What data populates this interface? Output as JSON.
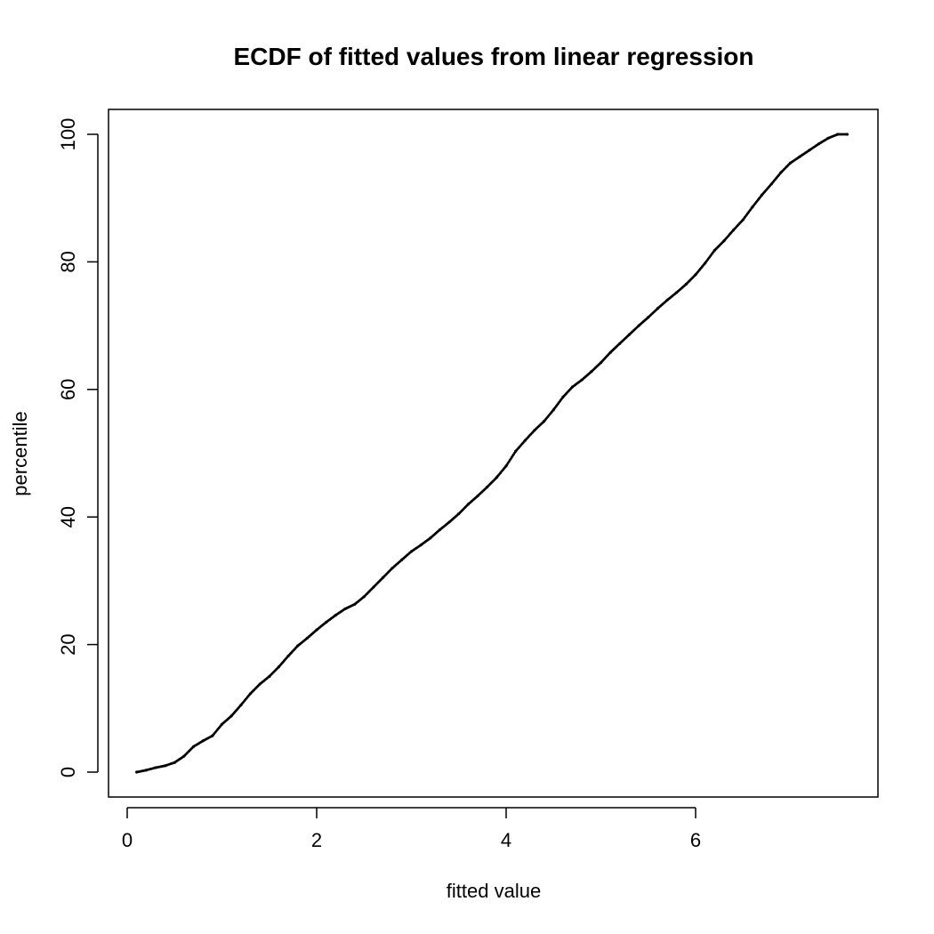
{
  "chart_data": {
    "type": "scatter",
    "title": "ECDF of fitted values from linear regression",
    "xlabel": "fitted value",
    "ylabel": "percentile",
    "xlim": [
      0,
      8
    ],
    "ylim": [
      0,
      100
    ],
    "x_ticks": [
      0,
      2,
      4,
      6
    ],
    "x_tick_labels": [
      "0",
      "2",
      "4",
      "6"
    ],
    "y_ticks": [
      0,
      20,
      40,
      60,
      80,
      100
    ],
    "y_tick_labels": [
      "0",
      "20",
      "40",
      "60",
      "80",
      "100"
    ],
    "grid": false,
    "legend": "none",
    "marker_color": "#000000",
    "series": [
      {
        "x": [
          0.1,
          0.2,
          0.3,
          0.4,
          0.5,
          0.6,
          0.7,
          0.8,
          0.9,
          1.0,
          1.1,
          1.2,
          1.3,
          1.4,
          1.5,
          1.6,
          1.7,
          1.8,
          1.9,
          2.0,
          2.1,
          2.2,
          2.3,
          2.4,
          2.5,
          2.6,
          2.7,
          2.8,
          2.9,
          3.0,
          3.1,
          3.2,
          3.3,
          3.4,
          3.5,
          3.6,
          3.7,
          3.8,
          3.9,
          4.0,
          4.1,
          4.2,
          4.3,
          4.4,
          4.5,
          4.6,
          4.7,
          4.8,
          4.9,
          5.0,
          5.1,
          5.2,
          5.3,
          5.4,
          5.5,
          5.6,
          5.7,
          5.8,
          5.9,
          6.0,
          6.1,
          6.2,
          6.3,
          6.4,
          6.5,
          6.6,
          6.7,
          6.8,
          6.9,
          7.0,
          7.1,
          7.2,
          7.3,
          7.4,
          7.5,
          7.6
        ],
        "y": [
          0.0,
          0.3,
          0.7,
          1.0,
          1.5,
          2.5,
          4.0,
          4.9,
          5.7,
          7.5,
          8.8,
          10.5,
          12.3,
          13.8,
          15.0,
          16.5,
          18.2,
          19.8,
          21.0,
          22.3,
          23.5,
          24.6,
          25.6,
          26.3,
          27.5,
          29.0,
          30.5,
          32.0,
          33.3,
          34.6,
          35.6,
          36.7,
          38.0,
          39.2,
          40.5,
          42.0,
          43.3,
          44.7,
          46.2,
          48.0,
          50.3,
          52.0,
          53.6,
          55.0,
          56.8,
          58.8,
          60.4,
          61.5,
          62.8,
          64.2,
          65.8,
          67.2,
          68.6,
          70.0,
          71.3,
          72.7,
          74.0,
          75.2,
          76.5,
          78.0,
          79.8,
          81.8,
          83.3,
          85.0,
          86.6,
          88.6,
          90.5,
          92.2,
          94.0,
          95.5,
          96.5,
          97.5,
          98.5,
          99.4,
          100.0,
          100.0
        ]
      }
    ]
  }
}
